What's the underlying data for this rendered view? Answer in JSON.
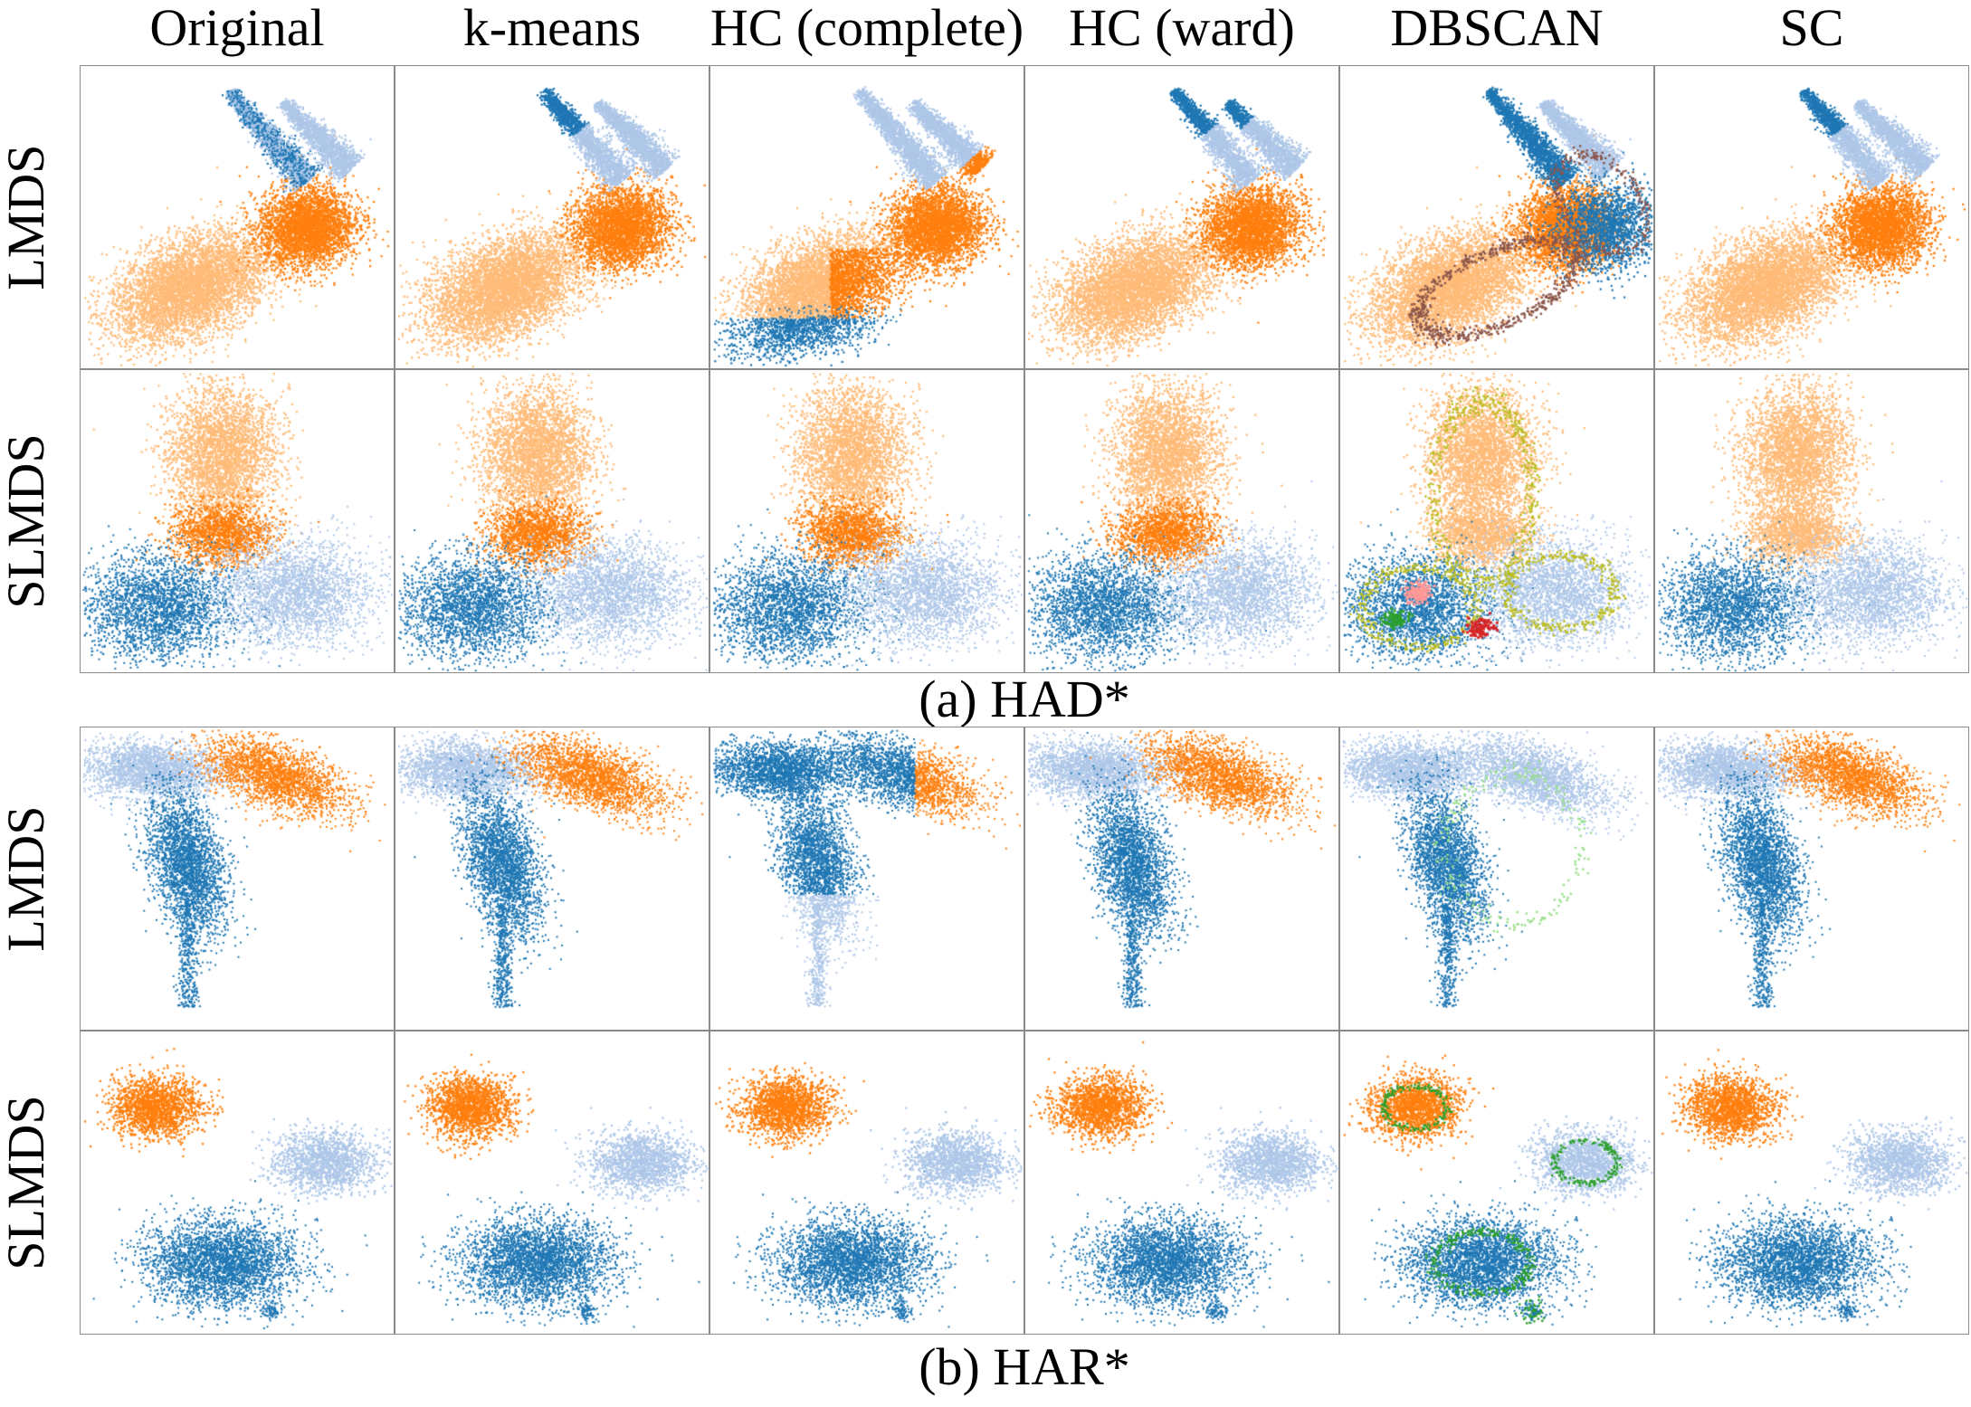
{
  "columns": [
    "Original",
    "k-means",
    "HC (complete)",
    "HC (ward)",
    "DBSCAN",
    "SC"
  ],
  "row_labels": [
    "LMDS",
    "SLMDS"
  ],
  "captions": [
    "(a) HAD*",
    "(b) HAR*"
  ],
  "colors": {
    "dark_blue": "#1f77b4",
    "light_blue": "#aec7e8",
    "orange": "#ff7f0e",
    "light_orange": "#ffbb78",
    "brown": "#8c564b",
    "olive": "#bcbd22",
    "green": "#2ca02c",
    "light_green": "#98df8a",
    "red": "#d62728",
    "pink": "#ff9896",
    "purple": "#9467bd",
    "frame": "#8a8a8a"
  },
  "chart_data": [
    {
      "type": "scatter",
      "panel": "(a) HAD*",
      "row": "LMDS",
      "columns": [
        "Original",
        "k-means",
        "HC (complete)",
        "HC (ward)",
        "DBSCAN",
        "SC"
      ],
      "xlim": [
        0,
        1
      ],
      "ylim": [
        0,
        1
      ],
      "axes": "no ticks, framed",
      "clusters": [
        {
          "name": "ellipse",
          "center": [
            0.35,
            0.27
          ],
          "spread": [
            0.14,
            0.09
          ],
          "color": "light_orange"
        },
        {
          "name": "blob",
          "center": [
            0.72,
            0.48
          ],
          "spread": [
            0.08,
            0.07
          ],
          "color": "orange"
        },
        {
          "name": "strip-left",
          "from": [
            0.48,
            0.92
          ],
          "to": [
            0.72,
            0.62
          ],
          "color": "dark_blue"
        },
        {
          "name": "strip-right",
          "from": [
            0.65,
            0.88
          ],
          "to": [
            0.86,
            0.66
          ],
          "color": "light_blue"
        }
      ]
    },
    {
      "type": "scatter",
      "panel": "(a) HAD*",
      "row": "SLMDS",
      "columns": [
        "Original",
        "k-means",
        "HC (complete)",
        "HC (ward)",
        "DBSCAN",
        "SC"
      ],
      "xlim": [
        0,
        1
      ],
      "ylim": [
        0,
        1
      ],
      "axes": "no ticks, framed",
      "clusters": [
        {
          "name": "top",
          "center": [
            0.45,
            0.72
          ],
          "spread": [
            0.09,
            0.12
          ],
          "color": "light_orange"
        },
        {
          "name": "middle",
          "center": [
            0.45,
            0.45
          ],
          "spread": [
            0.09,
            0.06
          ],
          "color": "orange"
        },
        {
          "name": "bottom-left",
          "center": [
            0.25,
            0.22
          ],
          "spread": [
            0.12,
            0.09
          ],
          "color": "dark_blue"
        },
        {
          "name": "bottom-right",
          "center": [
            0.68,
            0.26
          ],
          "spread": [
            0.12,
            0.09
          ],
          "color": "light_blue"
        }
      ]
    },
    {
      "type": "scatter",
      "panel": "(b) HAR*",
      "row": "LMDS",
      "columns": [
        "Original",
        "k-means",
        "HC (complete)",
        "HC (ward)",
        "DBSCAN",
        "SC"
      ],
      "xlim": [
        0,
        1
      ],
      "ylim": [
        0,
        1
      ],
      "axes": "no ticks, framed",
      "clusters": [
        {
          "name": "top-left",
          "center": [
            0.22,
            0.86
          ],
          "spread": [
            0.12,
            0.05
          ],
          "color": "light_blue"
        },
        {
          "name": "top-right",
          "center": [
            0.62,
            0.85
          ],
          "spread": [
            0.12,
            0.06
          ],
          "color": "orange"
        },
        {
          "name": "vertical",
          "center": [
            0.33,
            0.48
          ],
          "spread": [
            0.06,
            0.17
          ],
          "color": "dark_blue"
        }
      ]
    },
    {
      "type": "scatter",
      "panel": "(b) HAR*",
      "row": "SLMDS",
      "columns": [
        "Original",
        "k-means",
        "HC (complete)",
        "HC (ward)",
        "DBSCAN",
        "SC"
      ],
      "xlim": [
        0,
        1
      ],
      "ylim": [
        0,
        1
      ],
      "axes": "no ticks, framed",
      "clusters": [
        {
          "name": "upper-left",
          "center": [
            0.24,
            0.75
          ],
          "spread": [
            0.08,
            0.06
          ],
          "color": "orange"
        },
        {
          "name": "right",
          "center": [
            0.78,
            0.57
          ],
          "spread": [
            0.09,
            0.06
          ],
          "color": "light_blue"
        },
        {
          "name": "bottom",
          "center": [
            0.45,
            0.24
          ],
          "spread": [
            0.13,
            0.08
          ],
          "color": "dark_blue"
        },
        {
          "name": "bottom-small",
          "center": [
            0.61,
            0.08
          ],
          "spread": [
            0.02,
            0.02
          ],
          "color": "dark_blue"
        }
      ]
    }
  ]
}
